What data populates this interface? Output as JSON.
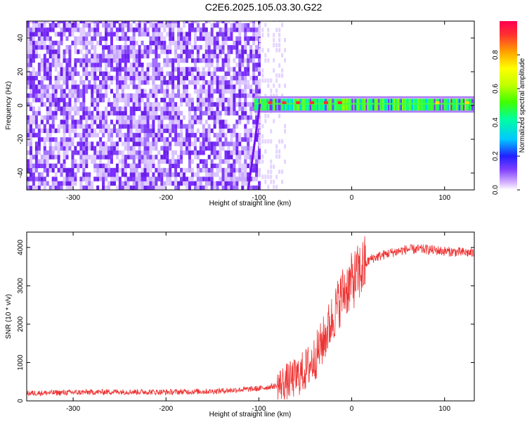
{
  "title": "C2E6.2025.105.03.30.G22",
  "colorbar": {
    "label": "Normalized spectral amplitude",
    "ticks": [
      0.0,
      0.2,
      0.4,
      0.6,
      0.8
    ],
    "tick_labels": [
      "0.0",
      "0.2",
      "0.4",
      "0.6",
      "0.8"
    ],
    "range": [
      0,
      1
    ]
  },
  "chart_data": [
    {
      "type": "heatmap",
      "xlabel": "Height of straight line (km)",
      "ylabel": "Frequency (Hz)",
      "xlim": [
        -350,
        132
      ],
      "ylim": [
        -50,
        50
      ],
      "x_ticks": [
        -300,
        -200,
        -100,
        0,
        100
      ],
      "x_tick_labels": [
        "-300",
        "-200",
        "-100",
        "0",
        "100"
      ],
      "y_ticks": [
        -40,
        -20,
        0,
        20,
        40
      ],
      "y_tick_labels": [
        "-40",
        "-20",
        "0",
        "20",
        "40"
      ],
      "description_regions": [
        {
          "x_range": [
            -350,
            -100
          ],
          "y_range": [
            -50,
            50
          ],
          "amplitude": 0.12
        },
        {
          "x_range": [
            -105,
            132
          ],
          "y_range": [
            -3,
            4
          ],
          "amplitude": 0.45
        }
      ]
    },
    {
      "type": "line",
      "xlabel": "Height of straight line (km)",
      "ylabel": "SNR (10 * v/v)",
      "xlim": [
        -350,
        132
      ],
      "ylim": [
        0,
        4400
      ],
      "x_ticks": [
        -300,
        -200,
        -100,
        0,
        100
      ],
      "x_tick_labels": [
        "-300",
        "-200",
        "-100",
        "0",
        "100"
      ],
      "y_ticks": [
        0,
        1000,
        2000,
        3000,
        4000
      ],
      "y_tick_labels": [
        "0",
        "1000",
        "2000",
        "3000",
        "4000"
      ],
      "color": "#ee3333",
      "series_profile": [
        {
          "x": -350,
          "y": 200
        },
        {
          "x": -300,
          "y": 220
        },
        {
          "x": -250,
          "y": 240
        },
        {
          "x": -200,
          "y": 230
        },
        {
          "x": -150,
          "y": 250
        },
        {
          "x": -100,
          "y": 320
        },
        {
          "x": -80,
          "y": 400
        },
        {
          "x": -60,
          "y": 600
        },
        {
          "x": -50,
          "y": 800
        },
        {
          "x": -40,
          "y": 1100
        },
        {
          "x": -30,
          "y": 1600
        },
        {
          "x": -20,
          "y": 2200
        },
        {
          "x": -10,
          "y": 2800
        },
        {
          "x": 0,
          "y": 3100
        },
        {
          "x": 10,
          "y": 3400
        },
        {
          "x": 20,
          "y": 3700
        },
        {
          "x": 40,
          "y": 3850
        },
        {
          "x": 60,
          "y": 3950
        },
        {
          "x": 80,
          "y": 3950
        },
        {
          "x": 100,
          "y": 3900
        },
        {
          "x": 132,
          "y": 3850
        }
      ]
    }
  ]
}
